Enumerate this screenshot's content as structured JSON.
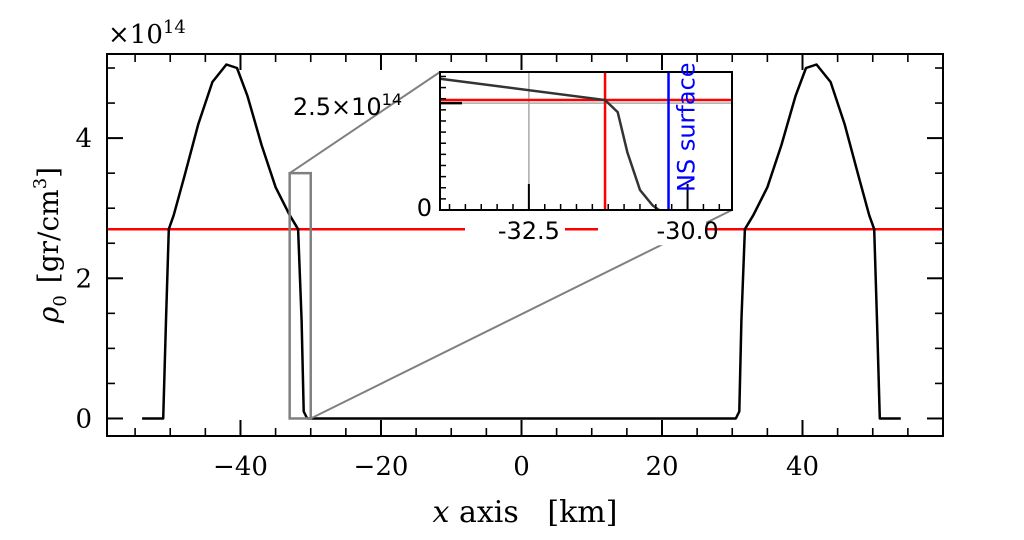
{
  "figure": {
    "scale_note": "×10",
    "scale_exp": "14",
    "xlabel_var": "x",
    "xlabel_rest": " axis   [km]",
    "ylabel_var": "ρ",
    "ylabel_sub": "0",
    "ylabel_unit": "[gr/cm",
    "ylabel_unit_exp": "3",
    "ylabel_unit_close": "]"
  },
  "chart_data": [
    {
      "type": "line",
      "panel": "main",
      "xlim": [
        -59,
        60
      ],
      "ylim": [
        -0.25,
        5.2
      ],
      "y_scale_factor": "1e14",
      "x_ticks": [
        -40,
        -20,
        0,
        20,
        40
      ],
      "x_tick_labels": [
        "−40",
        "−20",
        "0",
        "20",
        "40"
      ],
      "y_ticks": [
        0,
        2,
        4
      ],
      "y_tick_labels": [
        "0",
        "2",
        "4"
      ],
      "series": [
        {
          "color": "#000000",
          "x": [
            -54,
            -51,
            -50.6,
            -50.2,
            -49.5,
            -48,
            -46,
            -44,
            -42,
            -40.5,
            -39,
            -37,
            -35,
            -33,
            -31.8,
            -31.3,
            -31,
            -30.5,
            30.5,
            31,
            31.3,
            31.8,
            33,
            35,
            37,
            39,
            40.5,
            42,
            44,
            46,
            48,
            49.5,
            50.2,
            50.6,
            51,
            54
          ],
          "values": [
            0,
            0,
            1.4,
            2.7,
            2.9,
            3.45,
            4.2,
            4.8,
            5.05,
            5.0,
            4.6,
            3.9,
            3.3,
            2.9,
            2.7,
            1.4,
            0.1,
            0,
            0,
            0.1,
            1.4,
            2.7,
            2.9,
            3.3,
            3.9,
            4.6,
            5.0,
            5.05,
            4.8,
            4.2,
            3.45,
            2.9,
            2.7,
            1.4,
            0,
            0
          ]
        }
      ],
      "reference_lines": [
        {
          "orientation": "horizontal",
          "y": 2.7,
          "color": "#ff0000"
        }
      ],
      "zoom_box": {
        "x": [
          -33,
          -30
        ],
        "y": [
          0,
          3.5
        ],
        "color": "#808080"
      }
    },
    {
      "type": "line",
      "panel": "inset",
      "xlim": [
        -33.9,
        -29.3
      ],
      "ylim": [
        0,
        3.1
      ],
      "x_ticks": [
        -32.5,
        -30.0
      ],
      "x_tick_labels": [
        "-32.5",
        "-30.0"
      ],
      "y_tick_labels": [
        "0",
        "2.5×10"
      ],
      "y_tick_exp": "14",
      "series": [
        {
          "color": "#333333",
          "x": [
            -33.9,
            -31.3,
            -31.1,
            -30.95,
            -30.75,
            -30.55,
            -30.45
          ],
          "values": [
            2.95,
            2.47,
            2.2,
            1.3,
            0.45,
            0.1,
            0
          ]
        }
      ],
      "reference_lines": [
        {
          "orientation": "vertical",
          "x": -31.3,
          "color": "#ff0000"
        },
        {
          "orientation": "horizontal",
          "y": 2.47,
          "color": "#ff0000"
        },
        {
          "orientation": "vertical",
          "x": -30.3,
          "color": "#0000ff",
          "label": "NS surface"
        },
        {
          "orientation": "vertical",
          "x": -32.5,
          "color": "#aaaaaa"
        },
        {
          "orientation": "horizontal",
          "y": 2.4,
          "color": "#aaaaaa"
        }
      ]
    }
  ]
}
